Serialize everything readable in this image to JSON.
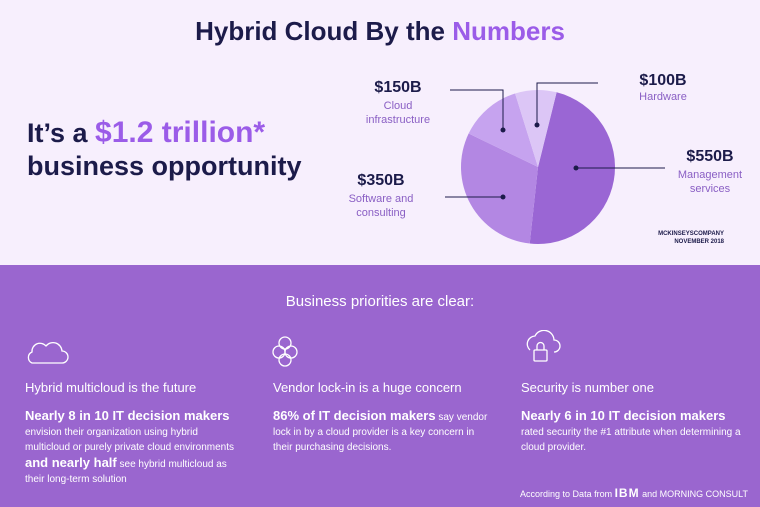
{
  "title": "Hybrid Cloud By the",
  "title_highlight": "Numbers",
  "headline": {
    "prefix": "It’s a",
    "highlight": "$1.2 trillion*",
    "line2": "business opportunity"
  },
  "chart_data": {
    "type": "pie",
    "categories": [
      "Management services",
      "Software and consulting",
      "Cloud infrastructure",
      "Hardware"
    ],
    "values": [
      550,
      350,
      150,
      100
    ],
    "value_labels": [
      "$550B",
      "$350B",
      "$150B",
      "$100B"
    ],
    "colors": [
      "#9a66d4",
      "#b387e3",
      "#c6a3ef",
      "#dcc6f6"
    ]
  },
  "source": [
    "MCKINSEYSCOMPANY",
    "NOVEMBER 2018"
  ],
  "section_title": "Business priorities are clear:",
  "columns": [
    {
      "heading": "Hybrid multicloud is the future",
      "body": [
        {
          "text": "Nearly 8 in 10 IT decision makers",
          "bold": true
        },
        {
          "text": " envision their organization using hybrid multicloud or purely private cloud environments ",
          "bold": false
        },
        {
          "text": "and nearly half",
          "bold": true
        },
        {
          "text": " see hybrid multicloud as their long-term solution",
          "bold": false
        }
      ]
    },
    {
      "heading": "Vendor lock-in is a huge concern",
      "body": [
        {
          "text": "86% of IT decision makers",
          "bold": true
        },
        {
          "text": " say vendor lock in by a cloud provider is a key concern in their purchasing decisions.",
          "bold": false
        }
      ]
    },
    {
      "heading": "Security is number one",
      "body": [
        {
          "text": "Nearly 6 in 10 IT decision makers",
          "bold": true
        },
        {
          "text": " rated security the #1 attribute when determining a cloud provider.",
          "bold": false
        }
      ]
    }
  ],
  "footer": {
    "prefix": "According to Data from",
    "brand1": "IBM",
    "and": "and",
    "brand2": "MORNING CONSULT"
  }
}
